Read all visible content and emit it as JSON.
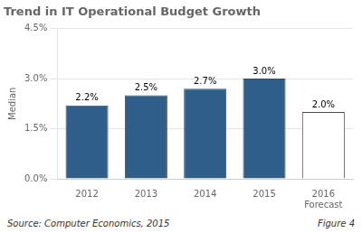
{
  "chart_data": {
    "type": "bar",
    "title": "Trend in IT Operational Budget Growth",
    "categories": [
      "2012",
      "2013",
      "2014",
      "2015",
      "2016\nForecast"
    ],
    "values": [
      2.2,
      2.5,
      2.7,
      3.0,
      2.0
    ],
    "value_labels": [
      "2.2%",
      "2.5%",
      "2.7%",
      "3.0%",
      "2.0%"
    ],
    "data_labels": true,
    "colors": [
      "#2E5F8A",
      "#2E5F8A",
      "#2E5F8A",
      "#2E5F8A",
      "#FFFFFF"
    ],
    "ylabel": "Median",
    "ylim": [
      0,
      4.5
    ],
    "yticks": [
      {
        "value": 0.0,
        "label": "0.0%"
      },
      {
        "value": 1.5,
        "label": "1.5%"
      },
      {
        "value": 3.0,
        "label": "3.0%"
      },
      {
        "value": 4.5,
        "label": "4.5%"
      }
    ],
    "grid": true,
    "annotations": [
      "Source: Computer Economics, 2015",
      "Figure 4"
    ]
  }
}
